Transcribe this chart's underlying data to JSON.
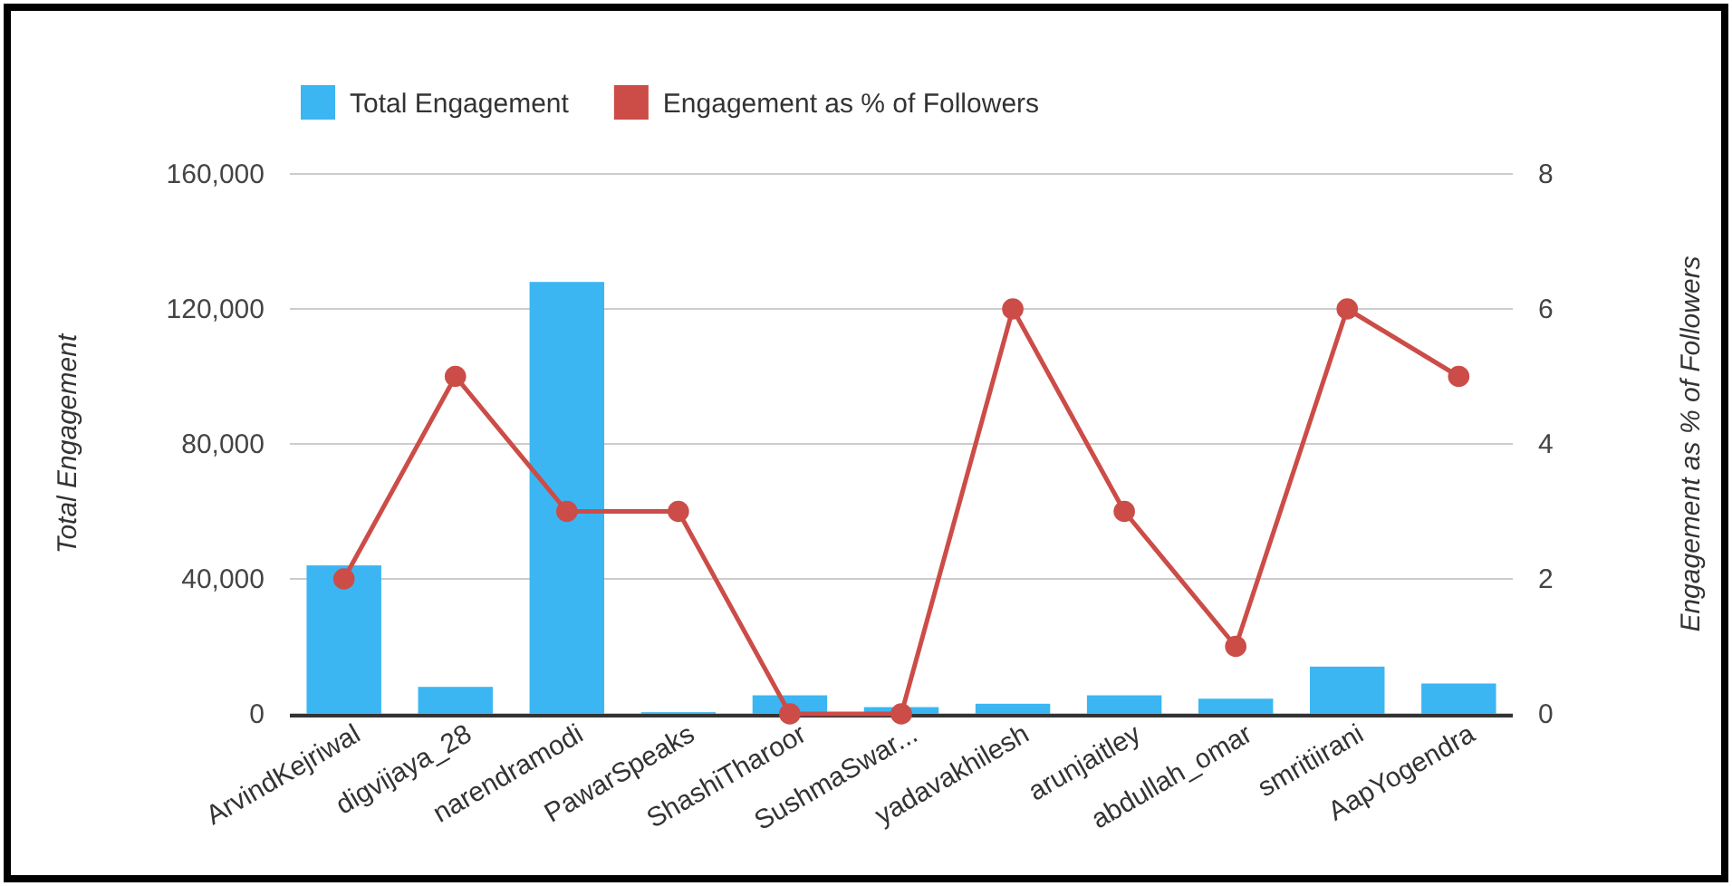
{
  "chart_data": {
    "type": "bar",
    "categories": [
      "ArvindKejriwal",
      "digvijaya_28",
      "narendramodi",
      "PawarSpeaks",
      "ShashiTharoor",
      "SushmaSwar...",
      "yadavakhilesh",
      "arunjaitley",
      "abdullah_omar",
      "smritiirani",
      "AapYogendra"
    ],
    "series": [
      {
        "name": "Total Engagement",
        "color": "#3bb6f2",
        "values": [
          44000,
          8000,
          128000,
          500,
          5500,
          2000,
          3000,
          5500,
          4500,
          14000,
          9000
        ]
      },
      {
        "name": "Engagement as % of Followers",
        "type": "line",
        "axis": "y2",
        "color": "#cc4c48",
        "values": [
          2,
          5,
          3,
          3,
          0,
          0,
          6,
          3,
          1,
          6,
          5
        ]
      }
    ],
    "ylabel": "Total Engagement",
    "y2label": "Engagement as % of Followers",
    "ylim": [
      0,
      160000
    ],
    "yticks": [
      {
        "value": 0,
        "label": "0"
      },
      {
        "value": 40000,
        "label": "40,000"
      },
      {
        "value": 80000,
        "label": "80,000"
      },
      {
        "value": 120000,
        "label": "120,000"
      },
      {
        "value": 160000,
        "label": "160,000"
      }
    ],
    "y2lim": [
      0,
      8
    ],
    "y2ticks": [
      0,
      2,
      4,
      6,
      8
    ],
    "grid": "y",
    "legend": "top",
    "marker": "circle",
    "line_style": "solid"
  }
}
